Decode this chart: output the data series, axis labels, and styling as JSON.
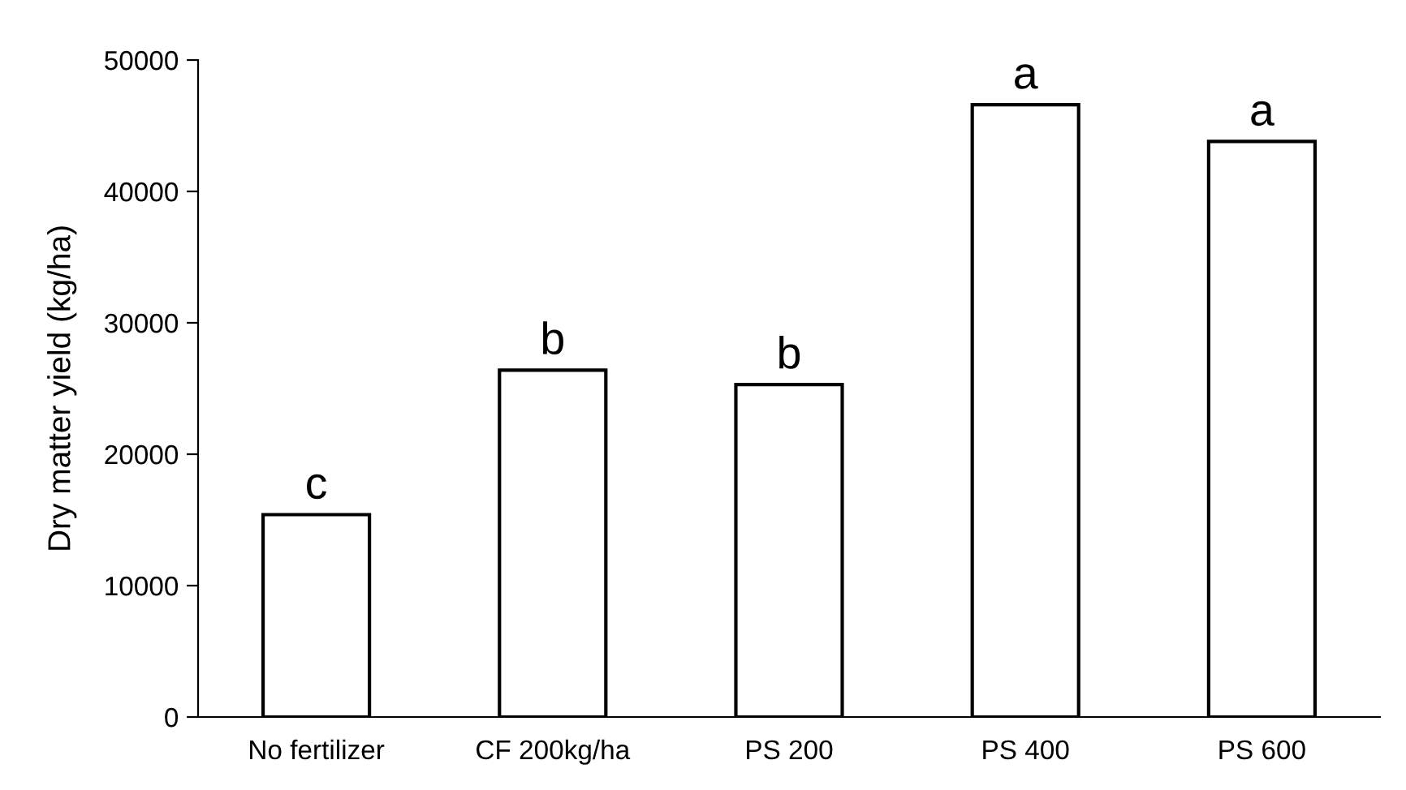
{
  "chart_data": {
    "type": "bar",
    "ylabel": "Dry matter yield (kg/ha)",
    "categories": [
      "No fertilizer",
      "CF 200kg/ha",
      "PS 200",
      "PS 400",
      "PS 600"
    ],
    "values": [
      15400,
      26400,
      25300,
      46600,
      43800
    ],
    "color": "#ffffff",
    "ylim": [
      0,
      50000
    ],
    "yticks": [
      0,
      10000,
      20000,
      30000,
      40000,
      50000
    ],
    "grid": false,
    "annotations": [
      {
        "text": "c",
        "x": "No fertilizer",
        "y": 15400
      },
      {
        "text": "b",
        "x": "CF 200kg/ha",
        "y": 26400
      },
      {
        "text": "b",
        "x": "PS 200",
        "y": 25300
      },
      {
        "text": "a",
        "x": "PS 400",
        "y": 46600
      },
      {
        "text": "a",
        "x": "PS 600",
        "y": 43800
      }
    ]
  }
}
